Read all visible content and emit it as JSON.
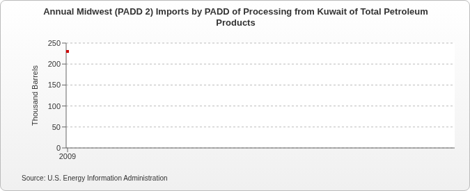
{
  "chart_data": {
    "type": "line",
    "title": "Annual Midwest (PADD 2) Imports by PADD of Processing from Kuwait of Total Petroleum Products",
    "y_label": "Thousand Barrels",
    "annotations": [
      "Source: U.S. Energy Information Administration"
    ],
    "categories": [
      "2009"
    ],
    "values": [
      230
    ],
    "color": "#cc0000",
    "marker": "square",
    "ylim": [
      0,
      250
    ],
    "yticks": [
      0,
      50,
      100,
      150,
      200,
      250
    ],
    "grid": true
  }
}
